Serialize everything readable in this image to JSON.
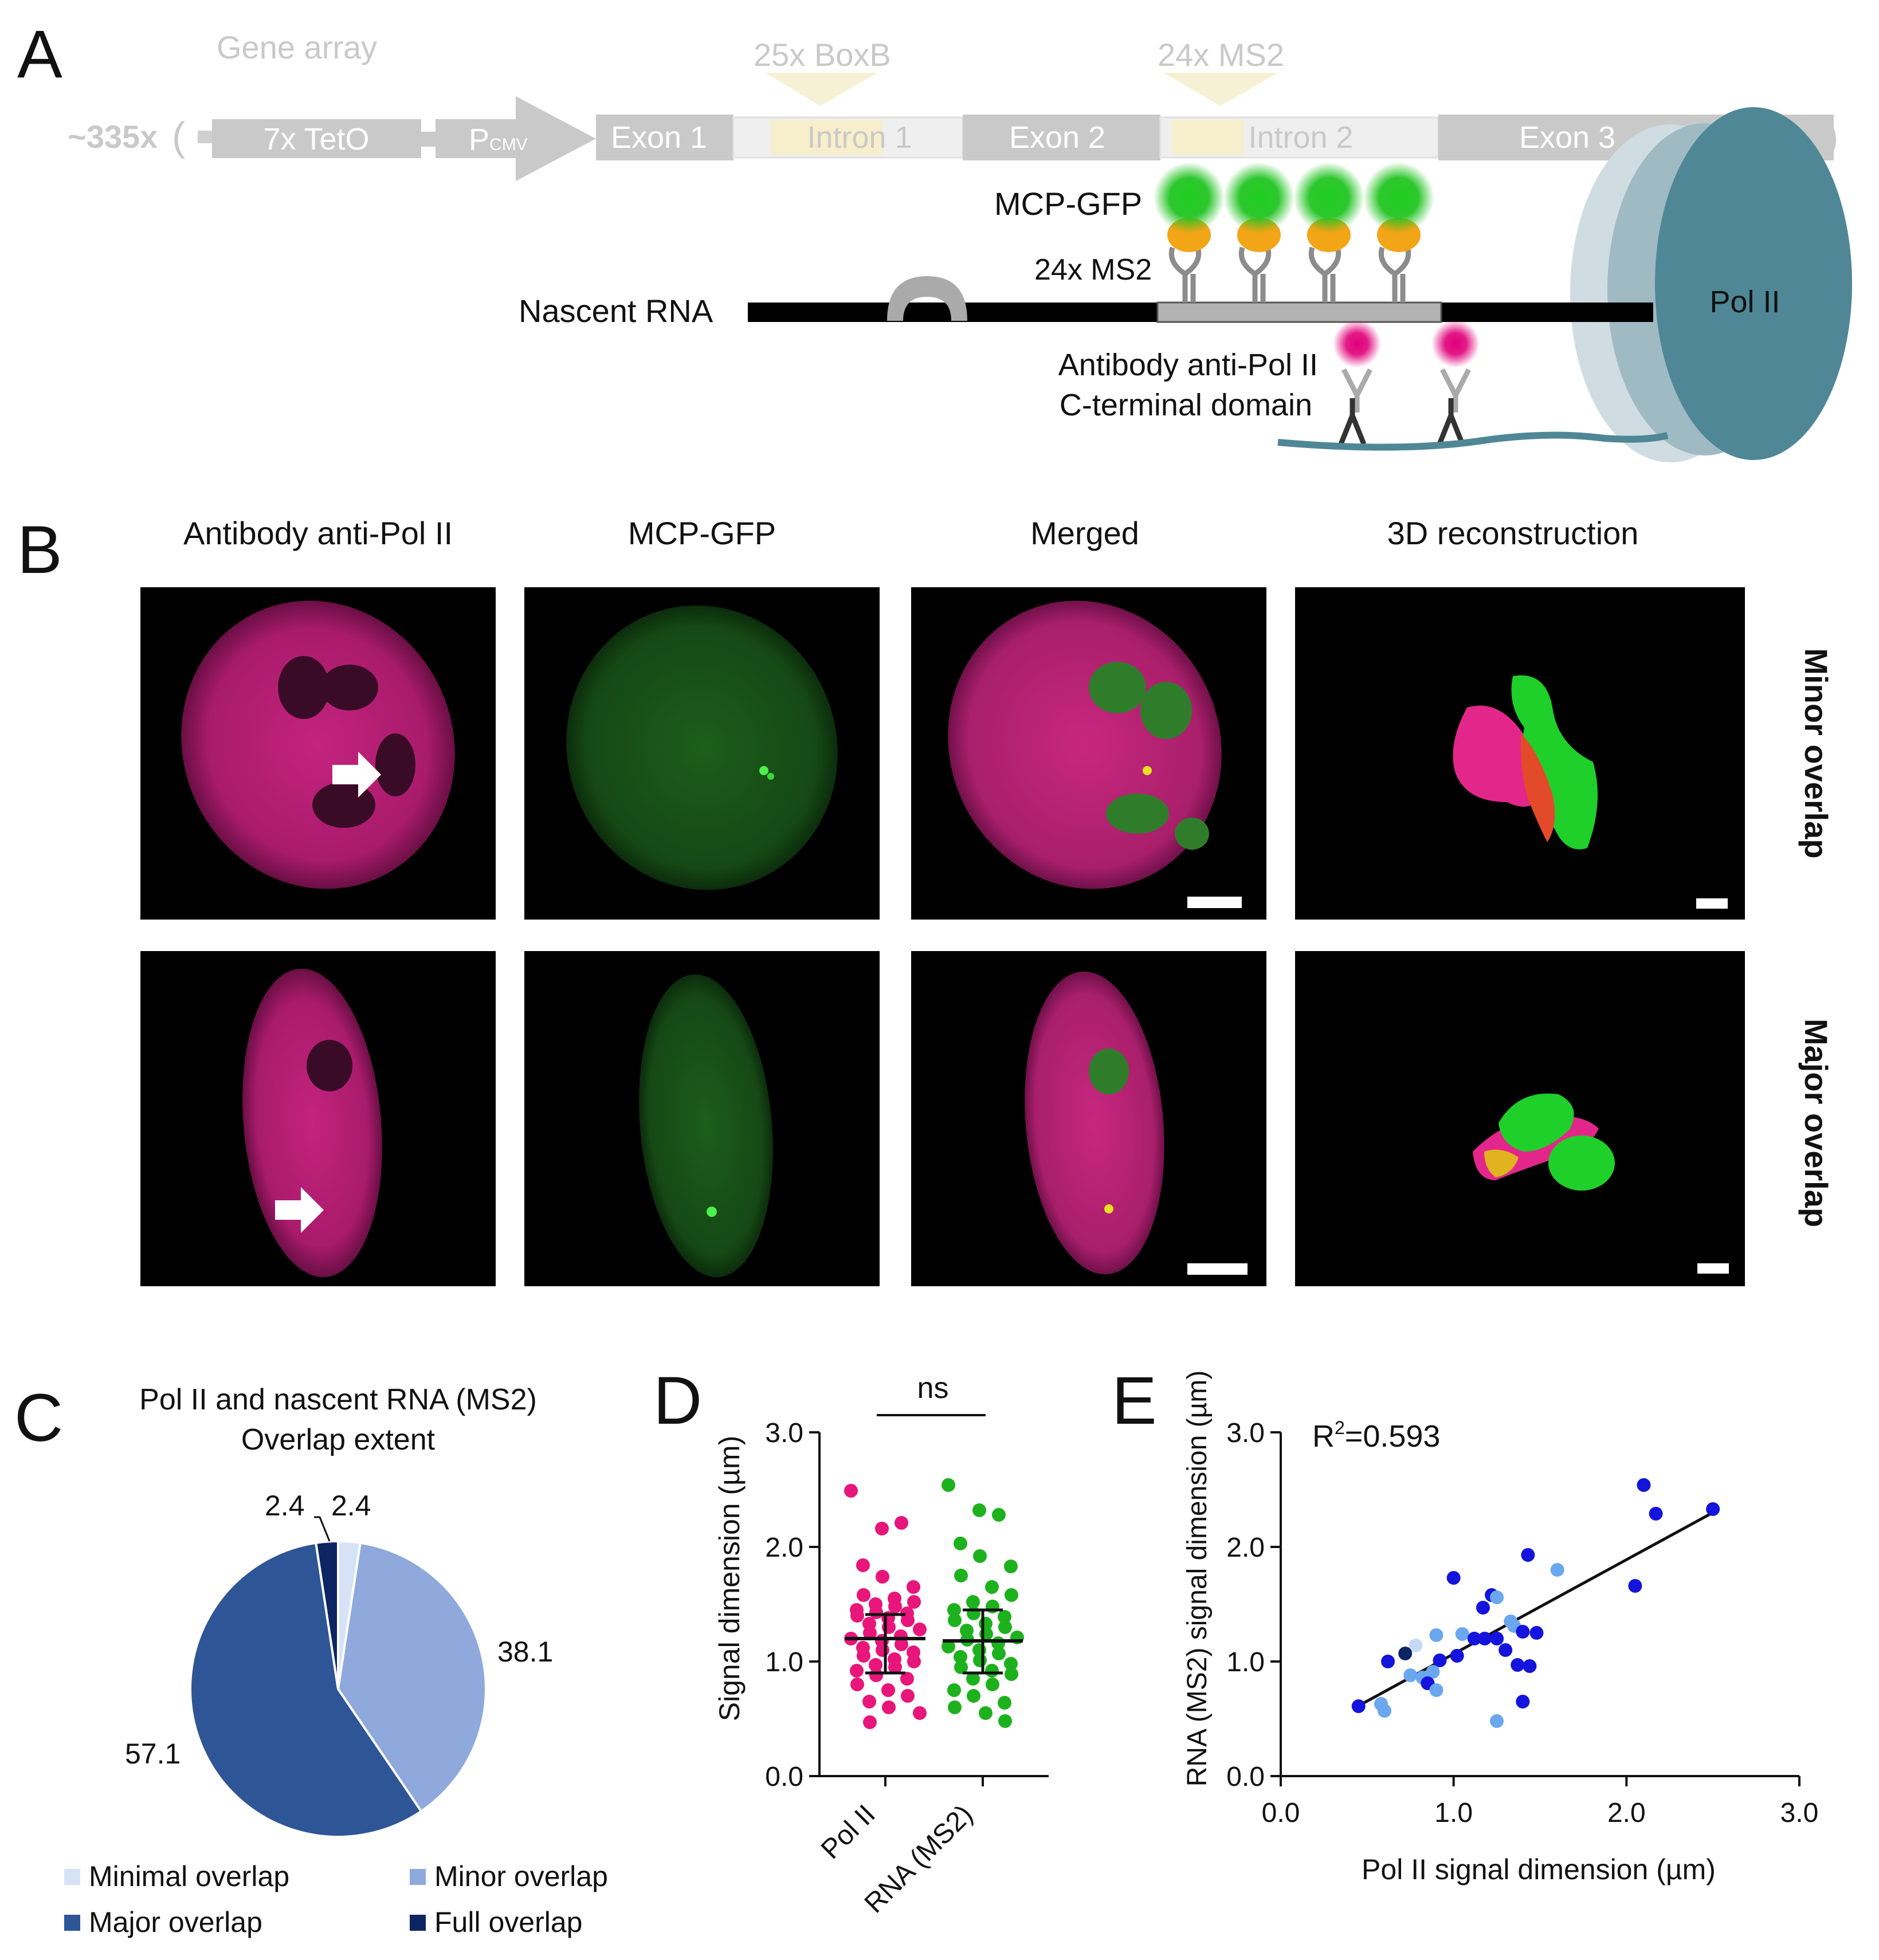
{
  "panel_labels": {
    "a": "A",
    "b": "B",
    "c": "C",
    "d": "D",
    "e": "E"
  },
  "panel_a": {
    "gene_array": "Gene array",
    "copy_number": "~335x",
    "open_paren": "(",
    "close_paren": ")",
    "teto": "7x TetO",
    "promoter_main": "P",
    "promoter_sub": "CMV",
    "exon1": "Exon 1",
    "intron1": "Intron 1",
    "exon2": "Exon 2",
    "intron2": "Intron 2",
    "exon3": "Exon 3",
    "boxb": "25x BoxB",
    "ms2_top": "24x MS2",
    "mcp_gfp": "MCP-GFP",
    "ms2_loops": "24x MS2",
    "nascent_rna": "Nascent RNA",
    "pol2": "Pol II",
    "antibody_line1": "Antibody anti-Pol II",
    "antibody_line2": "C-terminal domain",
    "colors": {
      "gfp": "#16c21a",
      "mcp": "#f2a516",
      "pol2": "#4f8796",
      "antibody": "#e0007a"
    }
  },
  "panel_b": {
    "columns": [
      "Antibody anti-Pol II",
      "MCP-GFP",
      "Merged",
      "3D reconstruction"
    ],
    "rows": [
      "Minor overlap",
      "Major overlap"
    ]
  },
  "chart_data": [
    {
      "panel": "C",
      "type": "pie",
      "title_line1": "Pol II and nascent RNA (MS2)",
      "title_line2": "Overlap extent",
      "slices": [
        {
          "name": "Minimal overlap",
          "value": 2.4,
          "color": "#d6e2f5"
        },
        {
          "name": "Minor overlap",
          "value": 38.1,
          "color": "#8fa9dc"
        },
        {
          "name": "Major overlap",
          "value": 57.1,
          "color": "#2e5596"
        },
        {
          "name": "Full overlap",
          "value": 2.4,
          "color": "#0d2563"
        }
      ],
      "labels": {
        "minimal": "2.4",
        "full": "2.4",
        "minor": "38.1",
        "major": "57.1"
      },
      "legend_placement": "bottom"
    },
    {
      "panel": "D",
      "type": "scatter",
      "ylabel": "Signal dimension (µm)",
      "ylim": [
        0,
        3
      ],
      "yticks": [
        "0.0",
        "1.0",
        "2.0",
        "3.0"
      ],
      "categories": [
        "Pol II",
        "RNA (MS2)"
      ],
      "significance": "ns",
      "series": [
        {
          "name": "Pol II",
          "color": "#e8157a",
          "mean": 1.2,
          "sd_low": 0.9,
          "sd_high": 1.41,
          "values": [
            2.49,
            2.16,
            2.21,
            1.84,
            1.74,
            1.65,
            1.58,
            1.55,
            1.52,
            1.5,
            1.48,
            1.45,
            1.43,
            1.42,
            1.4,
            1.38,
            1.36,
            1.33,
            1.3,
            1.28,
            1.25,
            1.22,
            1.2,
            1.18,
            1.15,
            1.12,
            1.1,
            1.08,
            1.05,
            1.02,
            1.0,
            0.97,
            0.95,
            0.92,
            0.88,
            0.85,
            0.8,
            0.75,
            0.7,
            0.65,
            0.6,
            0.55,
            0.47
          ]
        },
        {
          "name": "RNA (MS2)",
          "color": "#1db11d",
          "mean": 1.18,
          "sd_low": 0.9,
          "sd_high": 1.45,
          "values": [
            2.54,
            2.32,
            2.28,
            2.03,
            1.92,
            1.83,
            1.75,
            1.65,
            1.58,
            1.52,
            1.48,
            1.45,
            1.42,
            1.39,
            1.36,
            1.33,
            1.3,
            1.27,
            1.24,
            1.21,
            1.19,
            1.16,
            1.13,
            1.1,
            1.07,
            1.04,
            1.01,
            0.98,
            0.95,
            0.92,
            0.89,
            0.85,
            0.8,
            0.75,
            0.7,
            0.64,
            0.6,
            0.55,
            0.48
          ]
        }
      ]
    },
    {
      "panel": "E",
      "type": "scatter",
      "xlabel": "Pol II signal dimension (µm)",
      "ylabel": "RNA (MS2) signal dimension (µm)",
      "xlim": [
        0,
        3
      ],
      "ylim": [
        0,
        3
      ],
      "xticks": [
        "0.0",
        "1.0",
        "2.0",
        "3.0"
      ],
      "yticks": [
        "0.0",
        "1.0",
        "2.0",
        "3.0"
      ],
      "r2_prefix": "R",
      "r2_sup": "2",
      "r2_value": "=0.593",
      "trendline": {
        "x": [
          0.47,
          2.5
        ],
        "y": [
          0.63,
          2.3
        ]
      },
      "points": [
        {
          "x": 2.5,
          "y": 2.33,
          "c": "#1414dc"
        },
        {
          "x": 2.1,
          "y": 2.54,
          "c": "#1414dc"
        },
        {
          "x": 2.17,
          "y": 2.29,
          "c": "#1414dc"
        },
        {
          "x": 2.05,
          "y": 1.66,
          "c": "#1414dc"
        },
        {
          "x": 1.6,
          "y": 1.8,
          "c": "#6aa7ef"
        },
        {
          "x": 1.43,
          "y": 1.93,
          "c": "#1414dc"
        },
        {
          "x": 1.0,
          "y": 1.73,
          "c": "#1414dc"
        },
        {
          "x": 1.17,
          "y": 1.47,
          "c": "#1414dc"
        },
        {
          "x": 1.22,
          "y": 1.58,
          "c": "#1414dc"
        },
        {
          "x": 1.25,
          "y": 1.56,
          "c": "#6aa7ef"
        },
        {
          "x": 1.33,
          "y": 1.35,
          "c": "#6aa7ef"
        },
        {
          "x": 1.35,
          "y": 1.31,
          "c": "#6aa7ef"
        },
        {
          "x": 1.4,
          "y": 1.26,
          "c": "#1414dc"
        },
        {
          "x": 1.48,
          "y": 1.25,
          "c": "#1414dc"
        },
        {
          "x": 1.05,
          "y": 1.24,
          "c": "#6aa7ef"
        },
        {
          "x": 1.12,
          "y": 1.2,
          "c": "#1414dc"
        },
        {
          "x": 1.18,
          "y": 1.2,
          "c": "#1414dc"
        },
        {
          "x": 1.25,
          "y": 1.2,
          "c": "#1414dc"
        },
        {
          "x": 0.9,
          "y": 1.23,
          "c": "#6aa7ef"
        },
        {
          "x": 1.3,
          "y": 1.1,
          "c": "#1414dc"
        },
        {
          "x": 1.02,
          "y": 1.05,
          "c": "#1414dc"
        },
        {
          "x": 0.92,
          "y": 1.01,
          "c": "#1414dc"
        },
        {
          "x": 0.78,
          "y": 1.14,
          "c": "#c7daf5"
        },
        {
          "x": 0.72,
          "y": 1.07,
          "c": "#0d2563"
        },
        {
          "x": 0.62,
          "y": 1.0,
          "c": "#1414dc"
        },
        {
          "x": 0.75,
          "y": 0.88,
          "c": "#6aa7ef"
        },
        {
          "x": 0.82,
          "y": 0.86,
          "c": "#6aa7ef"
        },
        {
          "x": 0.88,
          "y": 0.91,
          "c": "#6aa7ef"
        },
        {
          "x": 0.85,
          "y": 0.81,
          "c": "#1414dc"
        },
        {
          "x": 0.9,
          "y": 0.75,
          "c": "#6aa7ef"
        },
        {
          "x": 1.37,
          "y": 0.97,
          "c": "#1414dc"
        },
        {
          "x": 1.44,
          "y": 0.96,
          "c": "#1414dc"
        },
        {
          "x": 1.4,
          "y": 0.65,
          "c": "#1414dc"
        },
        {
          "x": 1.25,
          "y": 0.48,
          "c": "#6aa7ef"
        },
        {
          "x": 0.58,
          "y": 0.63,
          "c": "#6aa7ef"
        },
        {
          "x": 0.6,
          "y": 0.57,
          "c": "#6aa7ef"
        },
        {
          "x": 0.45,
          "y": 0.61,
          "c": "#1414dc"
        }
      ]
    }
  ]
}
